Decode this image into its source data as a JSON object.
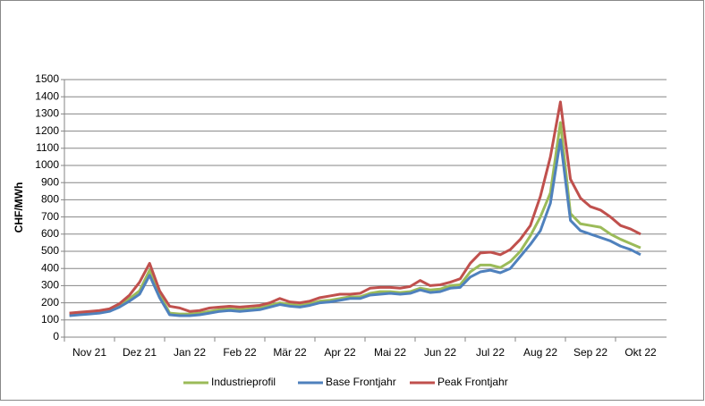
{
  "chart_data": {
    "type": "line",
    "y_label": "CHF/MWh",
    "categories": [
      null,
      null,
      "Nov 21",
      null,
      null,
      null,
      null,
      "Dez 21",
      null,
      null,
      null,
      null,
      "Jan 22",
      null,
      null,
      null,
      null,
      "Feb 22",
      null,
      null,
      null,
      null,
      "Mär 22",
      null,
      null,
      null,
      null,
      "Apr 22",
      null,
      null,
      null,
      null,
      "Mai 22",
      null,
      null,
      null,
      null,
      "Jun 22",
      null,
      null,
      null,
      null,
      "Jul 22",
      null,
      null,
      null,
      null,
      "Aug 22",
      null,
      null,
      null,
      null,
      "Sep 22",
      null,
      null,
      null,
      null,
      "Okt 22"
    ],
    "series": [
      {
        "name": "Industrieprofil",
        "color": "#9bbb59",
        "values": [
          130,
          135,
          140,
          148,
          158,
          185,
          225,
          270,
          390,
          250,
          140,
          135,
          135,
          140,
          150,
          160,
          165,
          160,
          165,
          170,
          185,
          200,
          190,
          185,
          195,
          210,
          215,
          225,
          235,
          235,
          255,
          265,
          265,
          260,
          265,
          285,
          275,
          280,
          300,
          305,
          380,
          420,
          420,
          405,
          440,
          500,
          590,
          700,
          840,
          1250,
          720,
          660,
          650,
          640,
          600,
          570,
          545,
          520
        ]
      },
      {
        "name": "Base Frontjahr",
        "color": "#4f81bd",
        "values": [
          125,
          130,
          135,
          140,
          150,
          175,
          210,
          250,
          360,
          230,
          130,
          125,
          125,
          130,
          140,
          150,
          155,
          150,
          155,
          160,
          175,
          190,
          180,
          175,
          185,
          200,
          205,
          215,
          225,
          225,
          245,
          250,
          255,
          250,
          255,
          275,
          260,
          265,
          285,
          290,
          350,
          380,
          390,
          375,
          400,
          470,
          540,
          620,
          780,
          1150,
          680,
          620,
          600,
          580,
          560,
          530,
          510,
          480
        ]
      },
      {
        "name": "Peak Frontjahr",
        "color": "#c0504d",
        "values": [
          140,
          145,
          150,
          155,
          165,
          195,
          245,
          320,
          430,
          270,
          180,
          170,
          150,
          155,
          170,
          175,
          180,
          175,
          180,
          185,
          200,
          225,
          205,
          200,
          210,
          230,
          240,
          250,
          250,
          255,
          285,
          290,
          290,
          285,
          295,
          330,
          300,
          305,
          320,
          340,
          430,
          490,
          495,
          480,
          510,
          570,
          650,
          820,
          1050,
          1370,
          920,
          810,
          760,
          740,
          700,
          650,
          630,
          600
        ]
      }
    ],
    "ylim": [
      0,
      1500
    ],
    "yticks": [
      0,
      100,
      200,
      300,
      400,
      500,
      600,
      700,
      800,
      900,
      1000,
      1100,
      1200,
      1300,
      1400,
      1500
    ],
    "grid": true,
    "legend": "bottom"
  }
}
